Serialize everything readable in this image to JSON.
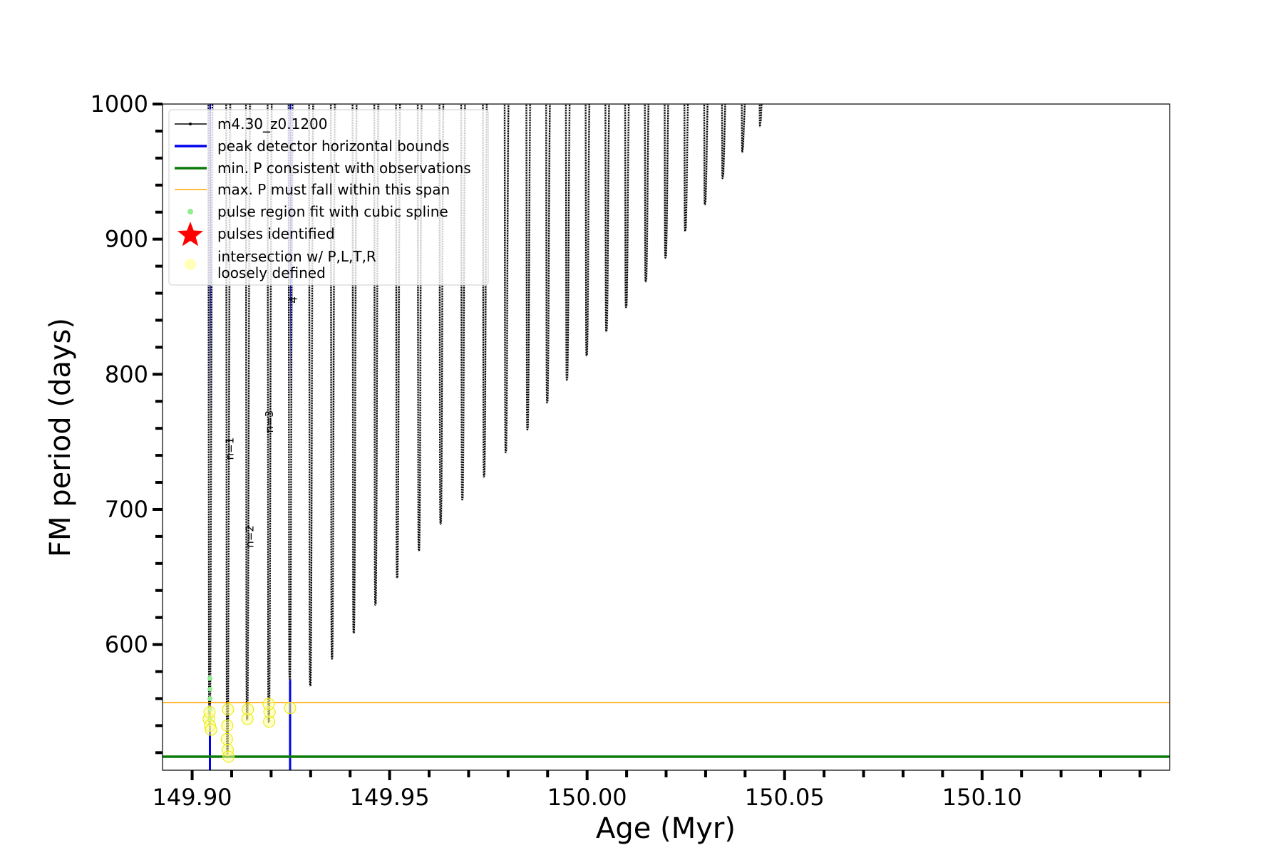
{
  "chart_data": {
    "type": "line",
    "xlabel": "Age (Myr)",
    "ylabel": "FM period (days)",
    "xlim": [
      149.8925,
      150.1475
    ],
    "ylim": [
      507,
      1000
    ],
    "x_ticks": [
      149.9,
      149.95,
      150.0,
      150.05,
      150.1
    ],
    "x_tick_labels": [
      "149.90",
      "149.95",
      "150.00",
      "150.05",
      "150.10"
    ],
    "y_ticks": [
      600,
      700,
      800,
      900,
      1000
    ],
    "y_tick_labels": [
      "600",
      "700",
      "800",
      "900",
      "1000"
    ],
    "x_minor_step": 0.01,
    "y_minor_step": 20,
    "legend_position": "upper-left",
    "series": [
      {
        "name": "m4.30_z0.1200",
        "color": "#000000",
        "style": "line-with-points",
        "pulses": [
          {
            "x": 149.9045,
            "min": 540
          },
          {
            "x": 149.909,
            "min": 517
          },
          {
            "x": 149.914,
            "min": 545
          },
          {
            "x": 149.9195,
            "min": 543
          },
          {
            "x": 149.9248,
            "min": 575
          },
          {
            "x": 149.93,
            "min": 570
          },
          {
            "x": 149.9355,
            "min": 590
          },
          {
            "x": 149.941,
            "min": 609
          },
          {
            "x": 149.9465,
            "min": 630
          },
          {
            "x": 149.952,
            "min": 650
          },
          {
            "x": 149.9575,
            "min": 670
          },
          {
            "x": 149.963,
            "min": 690
          },
          {
            "x": 149.9685,
            "min": 708
          },
          {
            "x": 149.974,
            "min": 725
          },
          {
            "x": 149.9795,
            "min": 743
          },
          {
            "x": 149.985,
            "min": 760
          },
          {
            "x": 149.99,
            "min": 780
          },
          {
            "x": 149.995,
            "min": 797
          },
          {
            "x": 150.0,
            "min": 815
          },
          {
            "x": 150.005,
            "min": 833
          },
          {
            "x": 150.01,
            "min": 851
          },
          {
            "x": 150.015,
            "min": 870
          },
          {
            "x": 150.02,
            "min": 888
          },
          {
            "x": 150.025,
            "min": 908
          },
          {
            "x": 150.03,
            "min": 928
          },
          {
            "x": 150.0345,
            "min": 948
          },
          {
            "x": 150.0395,
            "min": 968
          },
          {
            "x": 150.044,
            "min": 988
          }
        ]
      },
      {
        "name": "peak detector horizontal bounds",
        "color": "#0000ee",
        "style": "vline",
        "x": [
          149.9045,
          149.9248
        ]
      },
      {
        "name": "min. P consistent with observations",
        "color": "#0a7a0a",
        "style": "hline",
        "y": 517
      },
      {
        "name": "max. P must fall within this span",
        "color": "#ffa500",
        "style": "hline",
        "y": 557
      },
      {
        "name": "pulse region fit with cubic spline",
        "color": "#90ee90",
        "style": "points",
        "points": [
          [
            149.9045,
            545
          ],
          [
            149.9045,
            552
          ],
          [
            149.9045,
            560
          ],
          [
            149.9045,
            567
          ],
          [
            149.9045,
            575
          ]
        ]
      },
      {
        "name": "pulses identified",
        "color": "#ff0000",
        "style": "star",
        "points": []
      },
      {
        "name": "intersection w/ P,L,T,R\nloosely defined",
        "color": "#ffff99",
        "style": "blobs",
        "points": [
          [
            149.9042,
            545
          ],
          [
            149.9045,
            540
          ],
          [
            149.9048,
            537
          ],
          [
            149.9044,
            550
          ],
          [
            149.9088,
            530
          ],
          [
            149.909,
            522
          ],
          [
            149.9092,
            517
          ],
          [
            149.9089,
            540
          ],
          [
            149.9091,
            552
          ],
          [
            149.914,
            545
          ],
          [
            149.9141,
            552
          ],
          [
            149.9195,
            543
          ],
          [
            149.9196,
            550
          ],
          [
            149.9194,
            556
          ],
          [
            149.9248,
            553
          ]
        ]
      }
    ],
    "annotations": [
      {
        "text": "n=1",
        "x": 149.9105,
        "y": 745
      },
      {
        "text": "n=2",
        "x": 149.9155,
        "y": 680
      },
      {
        "text": "n=3",
        "x": 149.9205,
        "y": 765
      },
      {
        "text": "4",
        "x": 149.9265,
        "y": 855
      }
    ]
  }
}
